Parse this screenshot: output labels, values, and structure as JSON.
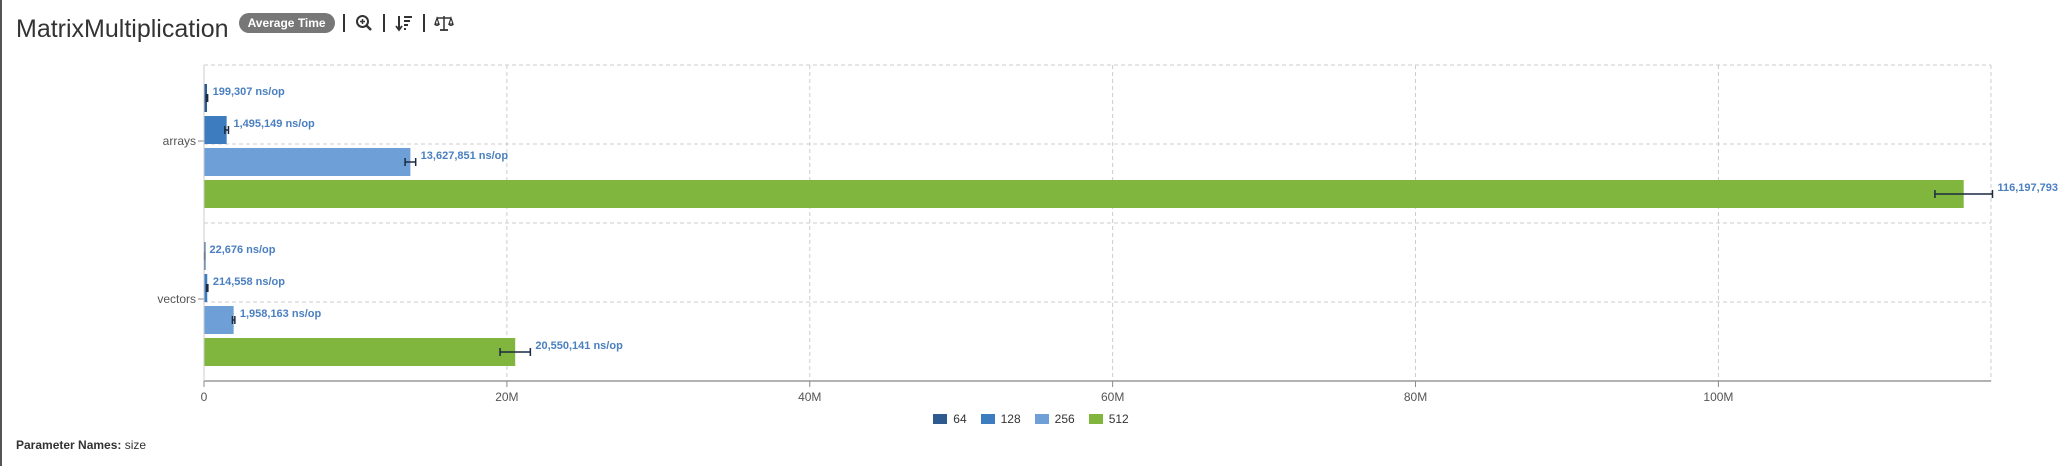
{
  "header": {
    "title": "MatrixMultiplication",
    "mode_badge": "Average Time",
    "tools": [
      "zoom-icon",
      "sort-icon",
      "scale-icon"
    ]
  },
  "footer": {
    "param_label": "Parameter Names:",
    "param_value": "size"
  },
  "chart_data": {
    "type": "bar",
    "orientation": "horizontal",
    "title": "",
    "xlabel": "",
    "ylabel": "",
    "unit": "ns/op",
    "xlim": [
      0,
      118000000
    ],
    "xticks": [
      {
        "value": 0,
        "label": "0"
      },
      {
        "value": 20000000,
        "label": "20M"
      },
      {
        "value": 40000000,
        "label": "40M"
      },
      {
        "value": 60000000,
        "label": "60M"
      },
      {
        "value": 80000000,
        "label": "80M"
      },
      {
        "value": 100000000,
        "label": "100M"
      }
    ],
    "grid": true,
    "legend_position": "bottom",
    "categories": [
      "arrays",
      "vectors"
    ],
    "series": [
      {
        "name": "64",
        "color": "#2e5a8f",
        "values": [
          199307,
          22676
        ],
        "errors": [
          40000,
          8000
        ],
        "labels": [
          "199,307 ns/op",
          "22,676 ns/op"
        ]
      },
      {
        "name": "128",
        "color": "#3e7cc0",
        "values": [
          1495149,
          214558
        ],
        "errors": [
          120000,
          40000
        ],
        "labels": [
          "1,495,149 ns/op",
          "214,558 ns/op"
        ]
      },
      {
        "name": "256",
        "color": "#6e9fd6",
        "values": [
          13627851,
          1958163
        ],
        "errors": [
          350000,
          80000
        ],
        "labels": [
          "13,627,851 ns/op",
          "1,958,163 ns/op"
        ]
      },
      {
        "name": "512",
        "color": "#80b63d",
        "values": [
          116197793,
          20550141
        ],
        "errors": [
          1900000,
          1000000
        ],
        "labels": [
          "116,197,793",
          "20,550,141 ns/op"
        ]
      }
    ]
  }
}
